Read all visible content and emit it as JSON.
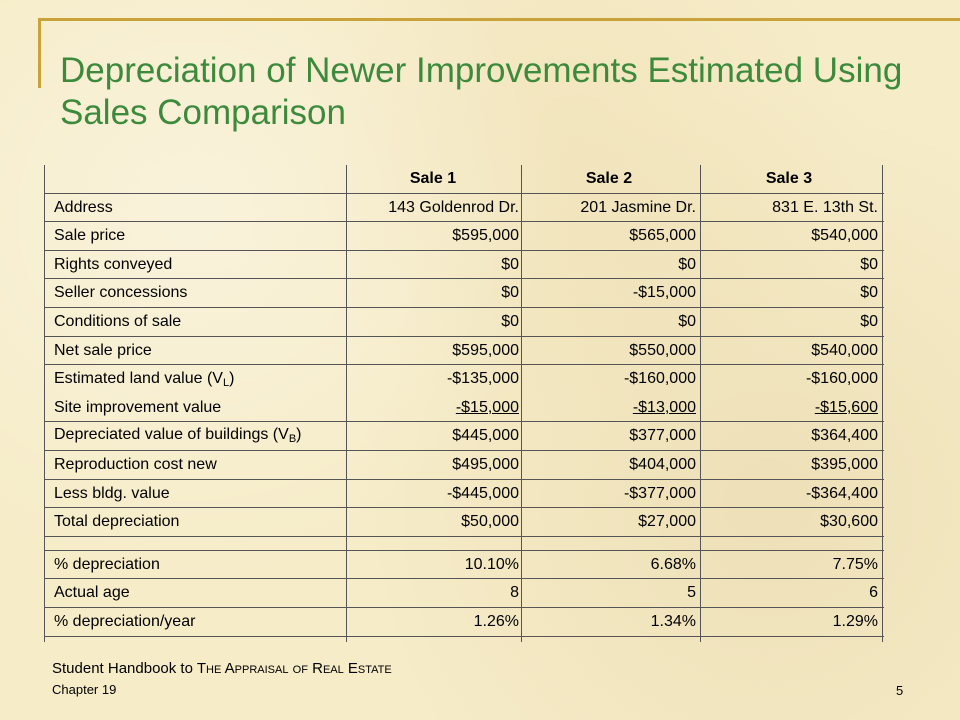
{
  "slide": {
    "title": "Depreciation of Newer Improvements Estimated Using Sales Comparison",
    "footer": {
      "book_prefix": "Student Handbook to ",
      "book_word1_first": "T",
      "book_word1_rest": "HE",
      "book_word2_first": "A",
      "book_word2_rest": "PPRAISAL",
      "book_word3": "OF",
      "book_word4_first": "R",
      "book_word4_rest": "EAL",
      "book_word5_first": "E",
      "book_word5_rest": "STATE",
      "chapter": "Chapter 19",
      "page_number": "5"
    }
  },
  "table": {
    "headers": [
      "Sale 1",
      "Sale 2",
      "Sale 3"
    ],
    "rows": [
      {
        "label": "Address",
        "values": [
          "143 Goldenrod Dr.",
          "201 Jasmine Dr.",
          "831 E. 13th St."
        ]
      },
      {
        "label": "Sale price",
        "values": [
          "$595,000",
          "$565,000",
          "$540,000"
        ]
      },
      {
        "label": "Rights conveyed",
        "values": [
          "$0",
          "$0",
          "$0"
        ]
      },
      {
        "label": "Seller concessions",
        "values": [
          "$0",
          "-$15,000",
          "$0"
        ]
      },
      {
        "label": "Conditions of sale",
        "values": [
          "$0",
          "$0",
          "$0"
        ]
      },
      {
        "label": "Net sale price",
        "values": [
          "$595,000",
          "$550,000",
          "$540,000"
        ]
      },
      {
        "label": "Estimated land value (V",
        "label_sub": "L",
        "label_end": ")",
        "values": [
          "-$135,000",
          "-$160,000",
          "-$160,000"
        ]
      },
      {
        "label": "Site improvement value",
        "values": [
          "-$15,000",
          "-$13,000",
          "-$15,600"
        ]
      },
      {
        "label": "Depreciated value of buildings (V",
        "label_sub": "B",
        "label_end": ")",
        "values": [
          "$445,000",
          "$377,000",
          "$364,400"
        ]
      },
      {
        "label": "Reproduction cost new",
        "values": [
          "$495,000",
          "$404,000",
          "$395,000"
        ]
      },
      {
        "label": "Less bldg. value",
        "values": [
          "-$445,000",
          "-$377,000",
          "-$364,400"
        ]
      },
      {
        "label": "Total depreciation",
        "values": [
          "$50,000",
          "$27,000",
          "$30,600"
        ]
      },
      {
        "label": "% depreciation",
        "values": [
          "10.10%",
          "6.68%",
          "7.75%"
        ]
      },
      {
        "label": "Actual age",
        "values": [
          "8",
          "5",
          "6"
        ]
      },
      {
        "label": "% depreciation/year",
        "values": [
          "1.26%",
          "1.34%",
          "1.29%"
        ]
      }
    ]
  }
}
